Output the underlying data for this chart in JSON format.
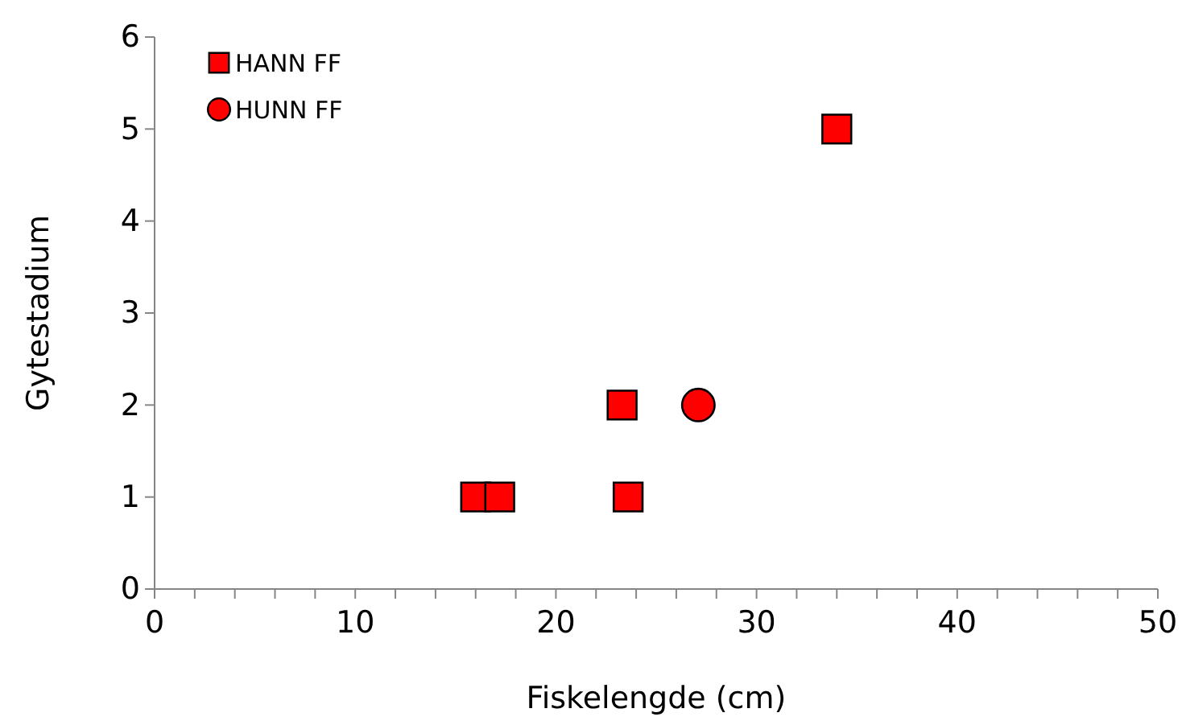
{
  "chart_data": {
    "type": "scatter",
    "xlabel": "Fiskelengde (cm)",
    "ylabel": "Gytestadium",
    "xlim": [
      0,
      50
    ],
    "ylim": [
      0,
      6
    ],
    "xticks": [
      0,
      {
        "value": 2,
        "label": null
      },
      {
        "value": 4,
        "label": null
      },
      {
        "value": 6,
        "label": null
      },
      {
        "value": 8,
        "label": null
      },
      10,
      {
        "value": 12,
        "label": null
      },
      {
        "value": 14,
        "label": null
      },
      {
        "value": 16,
        "label": null
      },
      {
        "value": 18,
        "label": null
      },
      20,
      {
        "value": 22,
        "label": null
      },
      {
        "value": 24,
        "label": null
      },
      {
        "value": 26,
        "label": null
      },
      {
        "value": 28,
        "label": null
      },
      30,
      {
        "value": 32,
        "label": null
      },
      {
        "value": 34,
        "label": null
      },
      {
        "value": 36,
        "label": null
      },
      {
        "value": 38,
        "label": null
      },
      40,
      {
        "value": 42,
        "label": null
      },
      {
        "value": 44,
        "label": null
      },
      {
        "value": 46,
        "label": null
      },
      {
        "value": 48,
        "label": null
      },
      50
    ],
    "yticks": [
      0,
      1,
      2,
      3,
      4,
      5,
      6
    ],
    "grid": false,
    "legend": "top left",
    "series": [
      {
        "name": "HANN FF",
        "color": "#ff0000",
        "marker": "square",
        "x": [
          16.0,
          17.2,
          23.3,
          23.6,
          34.0
        ],
        "values": [
          1,
          1,
          2,
          1,
          5
        ]
      },
      {
        "name": "HUNN FF",
        "color": "#ff0000",
        "marker": "circle",
        "x": [
          27.1
        ],
        "values": [
          2
        ]
      }
    ]
  }
}
